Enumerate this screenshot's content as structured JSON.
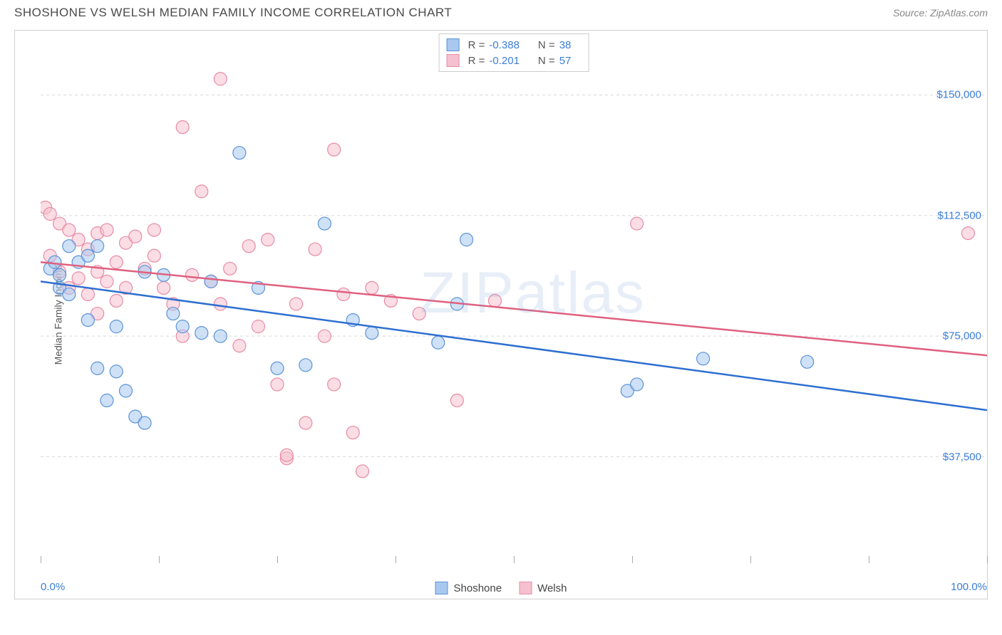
{
  "title": "SHOSHONE VS WELSH MEDIAN FAMILY INCOME CORRELATION CHART",
  "source": "Source: ZipAtlas.com",
  "watermark": "ZIPatlas",
  "y_axis_label": "Median Family Income",
  "chart": {
    "type": "scatter",
    "background_color": "#ffffff",
    "grid_color": "#d8d8d8",
    "border_color": "#d0d0d0",
    "xlim": [
      0,
      100
    ],
    "ylim": [
      0,
      170000
    ],
    "x_tick_positions": [
      0,
      12.5,
      25,
      37.5,
      50,
      62.5,
      75,
      87.5,
      100
    ],
    "x_tick_labels": {
      "0": "0.0%",
      "100": "100.0%"
    },
    "y_gridlines": [
      37500,
      75000,
      112500,
      150000
    ],
    "y_tick_labels": [
      "$37,500",
      "$75,000",
      "$112,500",
      "$150,000"
    ],
    "tick_label_color": "#3b7dd8",
    "tick_label_fontsize": 15,
    "axis_label_color": "#555555",
    "axis_label_fontsize": 14,
    "marker_radius": 9,
    "marker_opacity": 0.55,
    "line_width": 2.5,
    "series": [
      {
        "name": "Shoshone",
        "color_fill": "#a8c8ef",
        "color_stroke": "#5b93d8",
        "line_color": "#2e6fd0",
        "R": "-0.388",
        "N": "38",
        "trend": {
          "x1": 0,
          "y1": 92000,
          "x2": 100,
          "y2": 52000
        },
        "points": [
          [
            1,
            96000
          ],
          [
            1.5,
            98000
          ],
          [
            2,
            94000
          ],
          [
            2,
            90000
          ],
          [
            3,
            103000
          ],
          [
            3,
            88000
          ],
          [
            4,
            98000
          ],
          [
            5,
            100000
          ],
          [
            5,
            80000
          ],
          [
            6,
            103000
          ],
          [
            6,
            65000
          ],
          [
            7,
            55000
          ],
          [
            8,
            78000
          ],
          [
            8,
            64000
          ],
          [
            9,
            58000
          ],
          [
            10,
            50000
          ],
          [
            11,
            95000
          ],
          [
            13,
            94000
          ],
          [
            14,
            82000
          ],
          [
            15,
            78000
          ],
          [
            17,
            76000
          ],
          [
            18,
            92000
          ],
          [
            19,
            75000
          ],
          [
            21,
            132000
          ],
          [
            23,
            90000
          ],
          [
            25,
            65000
          ],
          [
            28,
            66000
          ],
          [
            30,
            110000
          ],
          [
            33,
            80000
          ],
          [
            35,
            76000
          ],
          [
            42,
            73000
          ],
          [
            45,
            105000
          ],
          [
            62,
            58000
          ],
          [
            63,
            60000
          ],
          [
            70,
            68000
          ],
          [
            81,
            67000
          ],
          [
            44,
            85000
          ],
          [
            11,
            48000
          ]
        ]
      },
      {
        "name": "Welsh",
        "color_fill": "#f6c1cf",
        "color_stroke": "#e88ba5",
        "line_color": "#e0607f",
        "R": "-0.201",
        "N": "57",
        "trend": {
          "x1": 0,
          "y1": 98000,
          "x2": 100,
          "y2": 69000
        },
        "points": [
          [
            0.5,
            115000
          ],
          [
            1,
            113000
          ],
          [
            1,
            100000
          ],
          [
            2,
            110000
          ],
          [
            2,
            95000
          ],
          [
            3,
            108000
          ],
          [
            3,
            90000
          ],
          [
            4,
            105000
          ],
          [
            4,
            93000
          ],
          [
            5,
            102000
          ],
          [
            5,
            88000
          ],
          [
            6,
            107000
          ],
          [
            6,
            95000
          ],
          [
            7,
            108000
          ],
          [
            7,
            92000
          ],
          [
            8,
            98000
          ],
          [
            8,
            86000
          ],
          [
            9,
            104000
          ],
          [
            9,
            90000
          ],
          [
            10,
            106000
          ],
          [
            11,
            96000
          ],
          [
            12,
            108000
          ],
          [
            13,
            90000
          ],
          [
            14,
            85000
          ],
          [
            15,
            140000
          ],
          [
            16,
            94000
          ],
          [
            17,
            120000
          ],
          [
            18,
            92000
          ],
          [
            19,
            155000
          ],
          [
            19,
            85000
          ],
          [
            20,
            96000
          ],
          [
            21,
            72000
          ],
          [
            22,
            103000
          ],
          [
            23,
            78000
          ],
          [
            24,
            105000
          ],
          [
            25,
            60000
          ],
          [
            26,
            37000
          ],
          [
            26,
            38000
          ],
          [
            27,
            85000
          ],
          [
            28,
            48000
          ],
          [
            29,
            102000
          ],
          [
            30,
            75000
          ],
          [
            31,
            133000
          ],
          [
            32,
            88000
          ],
          [
            33,
            45000
          ],
          [
            34,
            33000
          ],
          [
            35,
            90000
          ],
          [
            37,
            86000
          ],
          [
            40,
            82000
          ],
          [
            44,
            55000
          ],
          [
            48,
            86000
          ],
          [
            63,
            110000
          ],
          [
            98,
            107000
          ],
          [
            12,
            100000
          ],
          [
            6,
            82000
          ],
          [
            31,
            60000
          ],
          [
            15,
            75000
          ]
        ]
      }
    ]
  },
  "corr_legend": {
    "r_label": "R =",
    "n_label": "N ="
  },
  "bottom_legend": {
    "items": [
      "Shoshone",
      "Welsh"
    ]
  }
}
